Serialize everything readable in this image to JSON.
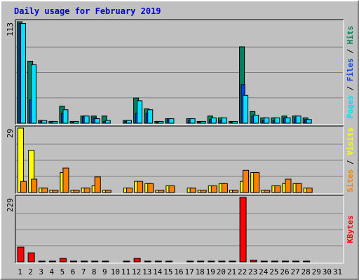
{
  "title": "Daily usage for February 2019",
  "chart_data": {
    "type": "bar",
    "title": "Daily usage for February 2019",
    "categories": [
      "1",
      "2",
      "3",
      "4",
      "5",
      "6",
      "7",
      "8",
      "9",
      "10",
      "11",
      "12",
      "13",
      "14",
      "15",
      "16",
      "17",
      "18",
      "19",
      "20",
      "21",
      "22",
      "23",
      "24",
      "25",
      "26",
      "27",
      "28",
      "29",
      "30",
      "31"
    ],
    "weekend_days": [
      "2",
      "3",
      "9",
      "10",
      "16",
      "17",
      "23",
      "24",
      "30",
      "31"
    ],
    "colors": {
      "hits": "#00805c",
      "files": "#0040ff",
      "pages": "#00e0ff",
      "visits": "#ffff00",
      "sites": "#ff8000",
      "kbytes": "#ff0000",
      "weekday_label": "#000000",
      "weekend_label": "#00805c",
      "grid": "#808080"
    },
    "panels": [
      {
        "name": "hits-files-pages",
        "ymax_label": "113",
        "ylim": [
          0,
          113
        ],
        "legend": [
          {
            "text": "Pages",
            "color": "#00e0ff"
          },
          {
            "text": " / ",
            "color": "#000000"
          },
          {
            "text": "Files",
            "color": "#0040ff"
          },
          {
            "text": " / ",
            "color": "#000000"
          },
          {
            "text": "Hits",
            "color": "#00805c"
          }
        ],
        "series": [
          {
            "name": "Hits",
            "color": "#00805c",
            "values": [
              113,
              69,
              3,
              2,
              19,
              2,
              8,
              8,
              8,
              0,
              3,
              28,
              16,
              2,
              5,
              0,
              5,
              2,
              8,
              6,
              2,
              85,
              13,
              6,
              6,
              8,
              8,
              6,
              0,
              0,
              0
            ]
          },
          {
            "name": "Files",
            "color": "#0040ff",
            "values": [
              111,
              26,
              2,
              2,
              11,
              1,
              7,
              6,
              2,
              0,
              2,
              11,
              11,
              1,
              4,
              0,
              3,
              1,
              4,
              3,
              1,
              43,
              8,
              3,
              3,
              6,
              6,
              4,
              0,
              0,
              0
            ]
          },
          {
            "name": "Pages",
            "color": "#00e0ff",
            "values": [
              111,
              65,
              3,
              2,
              15,
              2,
              8,
              5,
              3,
              0,
              3,
              25,
              15,
              2,
              5,
              0,
              5,
              2,
              6,
              6,
              2,
              31,
              9,
              6,
              6,
              6,
              8,
              4,
              0,
              0,
              0
            ]
          }
        ]
      },
      {
        "name": "visits-sites",
        "ymax_label": "29",
        "ylim": [
          0,
          29
        ],
        "legend": [
          {
            "text": "Sites",
            "color": "#ff8000"
          },
          {
            "text": " / ",
            "color": "#000000"
          },
          {
            "text": "Visits",
            "color": "#ffff00"
          }
        ],
        "series": [
          {
            "name": "Visits",
            "color": "#ffff00",
            "values": [
              29,
              19,
              2,
              1,
              9,
              1,
              2,
              3,
              1,
              0,
              2,
              5,
              4,
              1,
              3,
              0,
              2,
              1,
              3,
              4,
              1,
              5,
              9,
              1,
              3,
              4,
              4,
              2,
              0,
              0,
              0
            ]
          },
          {
            "name": "Sites",
            "color": "#ff8000",
            "values": [
              5,
              6,
              2,
              1,
              11,
              1,
              2,
              7,
              1,
              0,
              2,
              5,
              4,
              1,
              3,
              0,
              2,
              1,
              3,
              4,
              1,
              10,
              9,
              1,
              3,
              6,
              4,
              2,
              0,
              0,
              0
            ]
          }
        ]
      },
      {
        "name": "kbytes",
        "ymax_label": "229",
        "ylim": [
          0,
          229
        ],
        "legend": [
          {
            "text": "KBytes",
            "color": "#ff0000"
          }
        ],
        "series": [
          {
            "name": "KBytes",
            "color": "#ff0000",
            "values": [
              52,
              32,
              2,
              2,
              12,
              2,
              2,
              2,
              2,
              0,
              2,
              12,
              2,
              2,
              2,
              0,
              2,
              2,
              2,
              2,
              2,
              229,
              6,
              2,
              2,
              2,
              2,
              2,
              0,
              0,
              0
            ]
          }
        ]
      }
    ]
  }
}
